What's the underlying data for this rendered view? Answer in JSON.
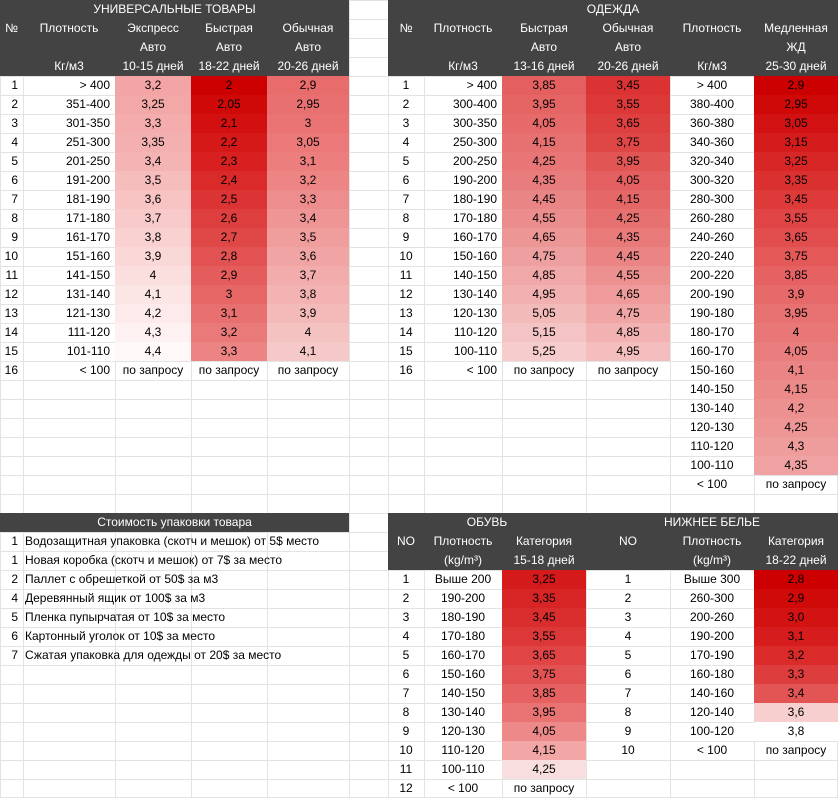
{
  "sections": {
    "universal": {
      "title": "УНИВЕРСАЛЬНЫЕ ТОВАРЫ",
      "headers": [
        [
          "№",
          "Плотность",
          "Экспресс",
          "Быстрая",
          "Обычная"
        ],
        [
          "",
          "",
          "Авто",
          "Авто",
          "Авто"
        ],
        [
          "",
          "Кг/м3",
          "10-15 дней",
          "18-22 дней",
          "20-26 дней"
        ]
      ],
      "rows": [
        [
          "1",
          "> 400",
          "3,2",
          "2",
          "2,9"
        ],
        [
          "2",
          "351-400",
          "3,25",
          "2,05",
          "2,95"
        ],
        [
          "3",
          "301-350",
          "3,3",
          "2,1",
          "3"
        ],
        [
          "4",
          "251-300",
          "3,35",
          "2,2",
          "3,05"
        ],
        [
          "5",
          "201-250",
          "3,4",
          "2,3",
          "3,1"
        ],
        [
          "6",
          "191-200",
          "3,5",
          "2,4",
          "3,2"
        ],
        [
          "7",
          "181-190",
          "3,6",
          "2,5",
          "3,3"
        ],
        [
          "8",
          "171-180",
          "3,7",
          "2,6",
          "3,4"
        ],
        [
          "9",
          "161-170",
          "3,8",
          "2,7",
          "3,5"
        ],
        [
          "10",
          "151-160",
          "3,9",
          "2,8",
          "3,6"
        ],
        [
          "11",
          "141-150",
          "4",
          "2,9",
          "3,7"
        ],
        [
          "12",
          "131-140",
          "4,1",
          "3",
          "3,8"
        ],
        [
          "13",
          "121-130",
          "4,2",
          "3,1",
          "3,9"
        ],
        [
          "14",
          "111-120",
          "4,3",
          "3,2",
          "4"
        ],
        [
          "15",
          "101-110",
          "4,4",
          "3,3",
          "4,1"
        ],
        [
          "16",
          "< 100",
          "по запросу",
          "по запросу",
          "по запросу"
        ]
      ]
    },
    "clothing": {
      "title": "ОДЕЖДА",
      "headers": [
        [
          "№",
          "Плотность",
          "Быстрая",
          "Обычная",
          "Плотность",
          "Медленная"
        ],
        [
          "",
          "",
          "Авто",
          "Авто",
          "",
          "ЖД"
        ],
        [
          "",
          "Кг/м3",
          "13-16 дней",
          "20-26 дней",
          "Кг/м3",
          "25-30 дней"
        ]
      ],
      "rows": [
        [
          "1",
          "> 400",
          "3,85",
          "3,45"
        ],
        [
          "2",
          "300-400",
          "3,95",
          "3,55"
        ],
        [
          "3",
          "300-350",
          "4,05",
          "3,65"
        ],
        [
          "4",
          "250-300",
          "4,15",
          "3,75"
        ],
        [
          "5",
          "200-250",
          "4,25",
          "3,95"
        ],
        [
          "6",
          "190-200",
          "4,35",
          "4,05"
        ],
        [
          "7",
          "180-190",
          "4,45",
          "4,15"
        ],
        [
          "8",
          "170-180",
          "4,55",
          "4,25"
        ],
        [
          "9",
          "160-170",
          "4,65",
          "4,35"
        ],
        [
          "10",
          "150-160",
          "4,75",
          "4,45"
        ],
        [
          "11",
          "140-150",
          "4,85",
          "4,55"
        ],
        [
          "12",
          "130-140",
          "4,95",
          "4,65"
        ],
        [
          "13",
          "120-130",
          "5,05",
          "4,75"
        ],
        [
          "14",
          "110-120",
          "5,15",
          "4,85"
        ],
        [
          "15",
          "100-110",
          "5,25",
          "4,95"
        ],
        [
          "16",
          "< 100",
          "по запросу",
          "по запросу"
        ]
      ],
      "rail_rows": [
        [
          "> 400",
          "2,9"
        ],
        [
          "380-400",
          "2,95"
        ],
        [
          "360-380",
          "3,05"
        ],
        [
          "340-360",
          "3,15"
        ],
        [
          "320-340",
          "3,25"
        ],
        [
          "300-320",
          "3,35"
        ],
        [
          "280-300",
          "3,45"
        ],
        [
          "260-280",
          "3,55"
        ],
        [
          "240-260",
          "3,65"
        ],
        [
          "220-240",
          "3,75"
        ],
        [
          "200-220",
          "3,85"
        ],
        [
          "200-190",
          "3,9"
        ],
        [
          "190-180",
          "3,95"
        ],
        [
          "180-170",
          "4"
        ],
        [
          "160-170",
          "4,05"
        ],
        [
          "150-160",
          "4,1"
        ],
        [
          "140-150",
          "4,15"
        ],
        [
          "130-140",
          "4,2"
        ],
        [
          "120-130",
          "4,25"
        ],
        [
          "110-120",
          "4,3"
        ],
        [
          "100-110",
          "4,35"
        ],
        [
          "< 100",
          "по запросу"
        ]
      ]
    },
    "packaging": {
      "title": "Стоимость упаковки товара",
      "items": [
        [
          "1",
          "Водозащитная упаковка (скотч и мешок) от 5$ место"
        ],
        [
          "1",
          "Новая коробка (скотч и мешок) от 7$ за место"
        ],
        [
          "2",
          "Паллет с обрешеткой от 50$ за м3"
        ],
        [
          "4",
          "Деревянный ящик от 100$ за м3"
        ],
        [
          "5",
          "Пленка пупырчатая от 10$ за место"
        ],
        [
          "6",
          "Картонный уголок от 10$ за место"
        ],
        [
          "7",
          "Сжатая упаковка для одежды от 20$ за место"
        ]
      ]
    },
    "shoes": {
      "title": "ОБУВЬ",
      "headers": [
        [
          "NO",
          "Плотность",
          "Категория"
        ],
        [
          "",
          "(kg/m³)",
          "15-18 дней"
        ]
      ],
      "rows": [
        [
          "1",
          "Выше 200",
          "3,25"
        ],
        [
          "2",
          "190-200",
          "3,35"
        ],
        [
          "3",
          "180-190",
          "3,45"
        ],
        [
          "4",
          "170-180",
          "3,55"
        ],
        [
          "5",
          "160-170",
          "3,65"
        ],
        [
          "6",
          "150-160",
          "3,75"
        ],
        [
          "7",
          "140-150",
          "3,85"
        ],
        [
          "8",
          "130-140",
          "3,95"
        ],
        [
          "9",
          "120-130",
          "4,05"
        ],
        [
          "10",
          "110-120",
          "4,15"
        ],
        [
          "11",
          "100-110",
          "4,25"
        ],
        [
          "12",
          "< 100",
          "по запросу"
        ]
      ]
    },
    "underwear": {
      "title": "НИЖНЕЕ БЕЛЬЕ",
      "headers": [
        [
          "NO",
          "Плотность",
          "Категория"
        ],
        [
          "",
          "(kg/m³)",
          "18-22 дней"
        ]
      ],
      "rows": [
        [
          "1",
          "Выше 300",
          "2,8"
        ],
        [
          "2",
          "260-300",
          "2,9"
        ],
        [
          "3",
          "200-260",
          "3,0"
        ],
        [
          "4",
          "190-200",
          "3,1"
        ],
        [
          "5",
          "170-190",
          "3,2"
        ],
        [
          "6",
          "160-180",
          "3,3"
        ],
        [
          "7",
          "140-160",
          "3,4"
        ],
        [
          "8",
          "120-140",
          "3,6"
        ],
        [
          "9",
          "100-120",
          "3,8"
        ],
        [
          "10",
          "< 100",
          "по запросу"
        ]
      ]
    }
  },
  "heat_colors": {
    "universal": {
      "express": [
        "#f3a4a4",
        "#f3a8a8",
        "#f4acac",
        "#f4b0b0",
        "#f5b4b4",
        "#f6bdbd",
        "#f7c3c3",
        "#f8caca",
        "#f9d1d1",
        "#fad8d8",
        "#fbdede",
        "#fce5e5",
        "#fdebeb",
        "#fef1f1",
        "#fff8f8"
      ],
      "fast": [
        "#cc0000",
        "#cf0808",
        "#d21010",
        "#d51818",
        "#d82020",
        "#da2a2a",
        "#dc3434",
        "#de3e3e",
        "#e04848",
        "#e25252",
        "#e45c5c",
        "#e66666",
        "#e87070",
        "#ea7a7a",
        "#ec8484"
      ],
      "normal": [
        "#e86c6c",
        "#e97070",
        "#ea7474",
        "#eb7979",
        "#ec7e7e",
        "#ed8585",
        "#ee8d8d",
        "#ef9595",
        "#f09d9d",
        "#f1a4a4",
        "#f2acac",
        "#f3b3b3",
        "#f4baba",
        "#f5c2c2",
        "#f6c9c9"
      ]
    },
    "clothing": {
      "fast": [
        "#e46060",
        "#e56565",
        "#e66a6a",
        "#e77070",
        "#e87676",
        "#e97d7d",
        "#ea8585",
        "#eb8d8d",
        "#ed9696",
        "#ee9f9f",
        "#f0a8a8",
        "#f1b1b1",
        "#f3baba",
        "#f4c3c3",
        "#f6cccc"
      ],
      "normal": [
        "#db3333",
        "#dc3838",
        "#de3f3f",
        "#df4646",
        "#e25555",
        "#e45f5f",
        "#e56767",
        "#e77070",
        "#e97a7a",
        "#eb8585",
        "#ed9090",
        "#ef9b9b",
        "#f1a6a6",
        "#f3b2b2",
        "#f5bebe"
      ],
      "rail": [
        "#cc0000",
        "#cf0808",
        "#d21212",
        "#d51c1c",
        "#d82626",
        "#db3030",
        "#de3a3a",
        "#e04444",
        "#e24e4e",
        "#e45858",
        "#e66262",
        "#e76a6a",
        "#e87171",
        "#e97777",
        "#ea7e7e",
        "#eb8484",
        "#ec8a8a",
        "#ed9090",
        "#ee9696",
        "#ef9c9c",
        "#f0a2a2"
      ]
    },
    "shoes": [
      "#d41a1a",
      "#d72424",
      "#da2e2e",
      "#dd3838",
      "#e04444",
      "#e35252",
      "#e66262",
      "#e97373",
      "#ed8989",
      "#f2a6a6",
      "#f8dede"
    ],
    "underwear": [
      "#cc0000",
      "#d00909",
      "#d31212",
      "#d61c1c",
      "#da2a2a",
      "#de3d3d",
      "#e35555",
      "#f7cfcf",
      "#ffffff"
    ]
  }
}
